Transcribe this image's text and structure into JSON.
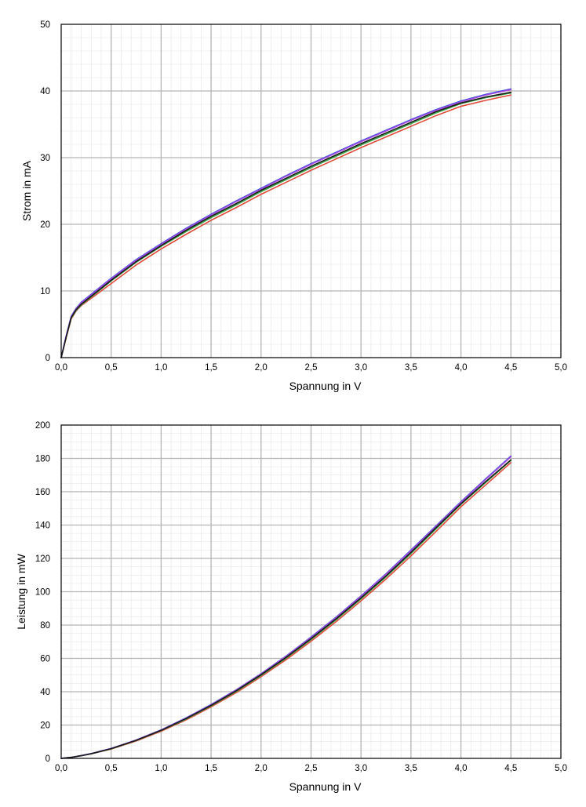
{
  "chart_data": [
    {
      "type": "line",
      "title": "",
      "xlabel": "Spannung in V",
      "ylabel": "Strom in mA",
      "xlim": [
        0,
        5
      ],
      "ylim": [
        0,
        50
      ],
      "grid": true,
      "x_ticks": [
        "0,0",
        "0,5",
        "1,0",
        "1,5",
        "2,0",
        "2,5",
        "3,0",
        "3,5",
        "4,0",
        "4,5",
        "5,0"
      ],
      "y_ticks": [
        "0",
        "10",
        "20",
        "30",
        "40",
        "50"
      ],
      "x": [
        0,
        0.05,
        0.1,
        0.15,
        0.2,
        0.3,
        0.4,
        0.5,
        0.75,
        1.0,
        1.25,
        1.5,
        1.75,
        2.0,
        2.25,
        2.5,
        2.75,
        3.0,
        3.25,
        3.5,
        3.75,
        4.0,
        4.25,
        4.5
      ],
      "series": [
        {
          "color": "#e04a3a",
          "values": [
            0,
            3.0,
            5.8,
            7.0,
            7.8,
            8.9,
            10.0,
            11.1,
            13.9,
            16.3,
            18.5,
            20.6,
            22.5,
            24.5,
            26.3,
            28.1,
            29.8,
            31.5,
            33.1,
            34.7,
            36.3,
            37.7,
            38.6,
            39.4
          ]
        },
        {
          "color": "#3ea84a",
          "values": [
            0,
            3.1,
            5.9,
            7.1,
            7.9,
            9.1,
            10.3,
            11.5,
            14.3,
            16.7,
            18.9,
            21.0,
            22.9,
            24.9,
            26.7,
            28.5,
            30.2,
            31.9,
            33.5,
            35.1,
            36.7,
            38.1,
            39.0,
            39.7
          ]
        },
        {
          "color": "#3a4fe0",
          "values": [
            0,
            3.3,
            6.2,
            7.4,
            8.3,
            9.5,
            10.7,
            11.9,
            14.7,
            17.1,
            19.4,
            21.5,
            23.5,
            25.4,
            27.3,
            29.1,
            30.8,
            32.5,
            34.1,
            35.7,
            37.2,
            38.5,
            39.5,
            40.3
          ]
        },
        {
          "color": "#a24ae0",
          "values": [
            0,
            3.2,
            6.1,
            7.3,
            8.2,
            9.4,
            10.6,
            11.8,
            14.6,
            17.0,
            19.3,
            21.4,
            23.4,
            25.3,
            27.2,
            29.0,
            30.7,
            32.4,
            34.0,
            35.6,
            37.1,
            38.4,
            39.4,
            40.2
          ]
        },
        {
          "color": "#1a1a1a",
          "values": [
            0,
            3.1,
            6.0,
            7.2,
            8.0,
            9.2,
            10.4,
            11.6,
            14.4,
            16.8,
            19.1,
            21.2,
            23.1,
            25.1,
            26.9,
            28.7,
            30.4,
            32.1,
            33.7,
            35.3,
            36.9,
            38.2,
            39.1,
            39.8
          ]
        }
      ]
    },
    {
      "type": "line",
      "title": "",
      "xlabel": "Spannung in V",
      "ylabel": "Leistung in mW",
      "xlim": [
        0,
        5
      ],
      "ylim": [
        0,
        200
      ],
      "grid": true,
      "x_ticks": [
        "0,0",
        "0,5",
        "1,0",
        "1,5",
        "2,0",
        "2,5",
        "3,0",
        "3,5",
        "4,0",
        "4,5",
        "5,0"
      ],
      "y_ticks": [
        "0",
        "20",
        "40",
        "60",
        "80",
        "100",
        "120",
        "140",
        "160",
        "180",
        "200"
      ],
      "x": [
        0,
        0.1,
        0.2,
        0.3,
        0.5,
        0.75,
        1.0,
        1.25,
        1.5,
        1.75,
        2.0,
        2.25,
        2.5,
        2.75,
        3.0,
        3.25,
        3.5,
        3.75,
        4.0,
        4.25,
        4.5
      ],
      "series": [
        {
          "color": "#e04a3a",
          "values": [
            0,
            0.6,
            1.6,
            2.7,
            5.6,
            10.4,
            16.3,
            23.1,
            30.9,
            39.4,
            49.0,
            59.2,
            70.3,
            82.0,
            94.5,
            107.6,
            121.5,
            136.1,
            151.0,
            164.2,
            177.5
          ]
        },
        {
          "color": "#3ea84a",
          "values": [
            0,
            0.6,
            1.6,
            2.7,
            5.7,
            10.7,
            16.7,
            23.6,
            31.5,
            40.1,
            49.8,
            60.1,
            71.3,
            83.1,
            95.7,
            108.9,
            122.9,
            137.6,
            152.4,
            165.7,
            178.8
          ]
        },
        {
          "color": "#3a4fe0",
          "values": [
            0,
            0.6,
            1.7,
            2.9,
            6.0,
            11.0,
            17.1,
            24.3,
            32.3,
            41.1,
            50.8,
            61.4,
            72.8,
            84.7,
            97.5,
            110.8,
            125.0,
            139.5,
            154.0,
            167.9,
            181.4
          ]
        },
        {
          "color": "#a24ae0",
          "values": [
            0,
            0.6,
            1.6,
            2.8,
            5.9,
            11.0,
            17.0,
            24.1,
            32.1,
            40.9,
            50.6,
            61.2,
            72.5,
            84.4,
            97.2,
            110.5,
            124.6,
            139.1,
            153.6,
            167.5,
            181.0
          ]
        },
        {
          "color": "#1a1a1a",
          "values": [
            0,
            0.6,
            1.6,
            2.8,
            5.8,
            10.8,
            16.8,
            23.9,
            31.8,
            40.5,
            50.2,
            60.6,
            71.8,
            83.7,
            96.3,
            109.5,
            123.6,
            138.4,
            152.8,
            166.2,
            179.1
          ]
        }
      ]
    }
  ]
}
